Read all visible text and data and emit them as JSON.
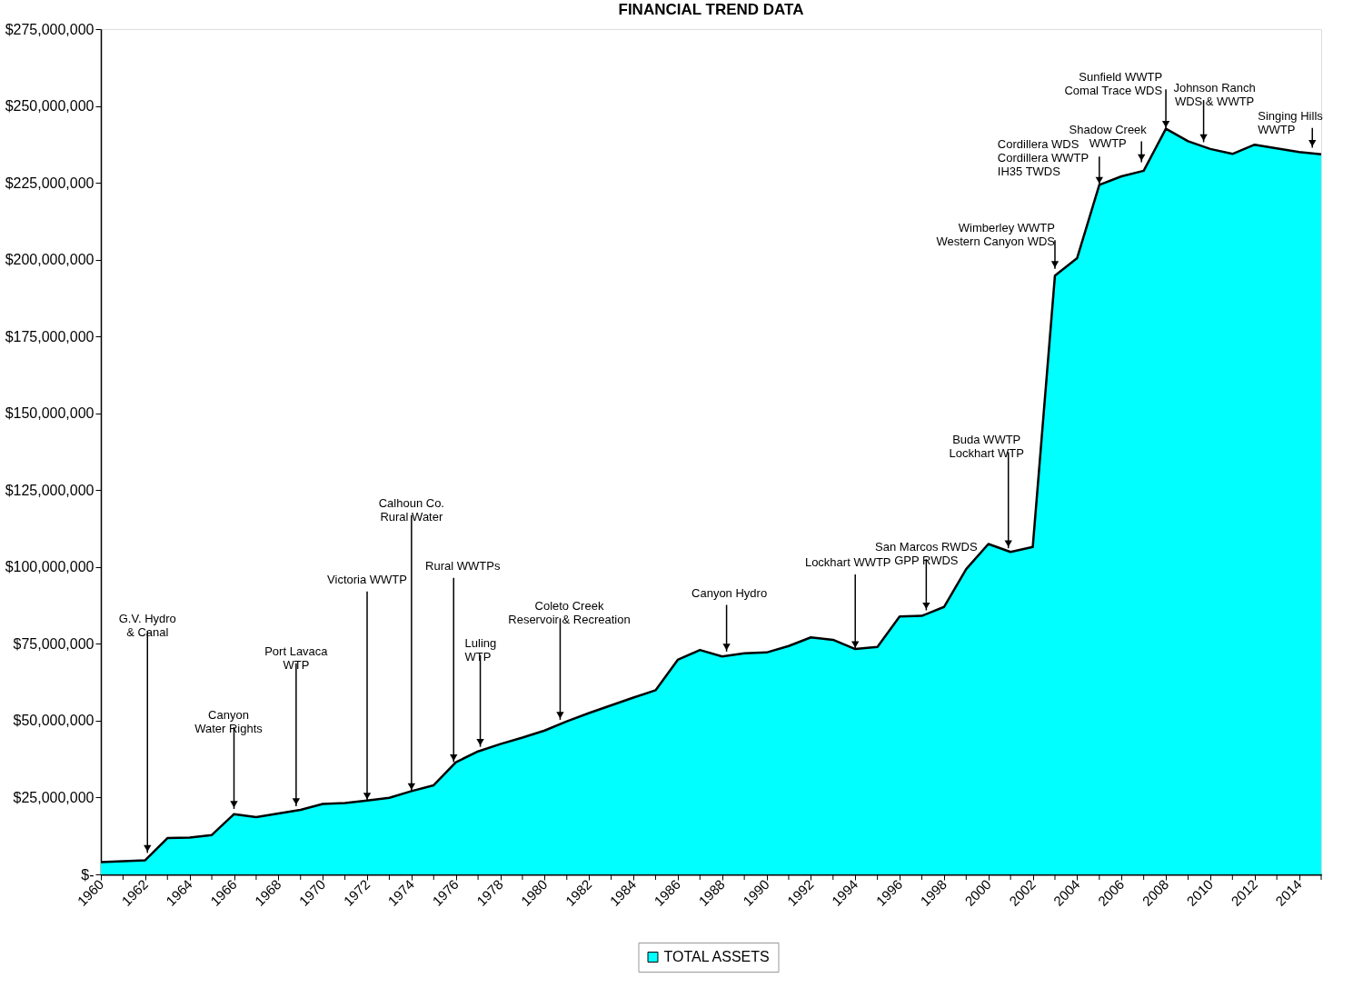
{
  "chart_data": {
    "type": "area",
    "title": "FINANCIAL TREND DATA",
    "x": [
      1960,
      1961,
      1962,
      1963,
      1964,
      1965,
      1966,
      1967,
      1968,
      1969,
      1970,
      1971,
      1972,
      1973,
      1974,
      1975,
      1976,
      1977,
      1978,
      1979,
      1980,
      1981,
      1982,
      1983,
      1984,
      1985,
      1986,
      1987,
      1988,
      1989,
      1990,
      1991,
      1992,
      1993,
      1994,
      1995,
      1996,
      1997,
      1998,
      1999,
      2000,
      2001,
      2002,
      2003,
      2004,
      2005,
      2006,
      2007,
      2008,
      2009,
      2010,
      2011,
      2012,
      2013,
      2014,
      2015
    ],
    "series": [
      {
        "name": "TOTAL ASSETS",
        "color": "#00ffff",
        "values": [
          4000000,
          4300000,
          4600000,
          11800000,
          12000000,
          12800000,
          19600000,
          18600000,
          19800000,
          21000000,
          22900000,
          23200000,
          24000000,
          24900000,
          27100000,
          29000000,
          36500000,
          40000000,
          42400000,
          44500000,
          46800000,
          49800000,
          52500000,
          55000000,
          57500000,
          59900000,
          69800000,
          73000000,
          70900000,
          71900000,
          72200000,
          74300000,
          77100000,
          76300000,
          73300000,
          74000000,
          83900000,
          84100000,
          87000000,
          99300000,
          107500000,
          104900000,
          106500000,
          194800000,
          200500000,
          224300000,
          227100000,
          228900000,
          242600000,
          238500000,
          236000000,
          234400000,
          237400000,
          236200000,
          235000000,
          234300000
        ]
      }
    ],
    "xlim": [
      1960,
      2015
    ],
    "xticks": [
      1960,
      {
        "value": 1961,
        "label": null
      },
      1962,
      {
        "value": 1963,
        "label": null
      },
      1964,
      {
        "value": 1965,
        "label": null
      },
      1966,
      {
        "value": 1967,
        "label": null
      },
      1968,
      {
        "value": 1969,
        "label": null
      },
      1970,
      {
        "value": 1971,
        "label": null
      },
      1972,
      {
        "value": 1973,
        "label": null
      },
      1974,
      {
        "value": 1975,
        "label": null
      },
      1976,
      {
        "value": 1977,
        "label": null
      },
      1978,
      {
        "value": 1979,
        "label": null
      },
      1980,
      {
        "value": 1981,
        "label": null
      },
      1982,
      {
        "value": 1983,
        "label": null
      },
      1984,
      {
        "value": 1985,
        "label": null
      },
      1986,
      {
        "value": 1987,
        "label": null
      },
      1988,
      {
        "value": 1989,
        "label": null
      },
      1990,
      {
        "value": 1991,
        "label": null
      },
      1992,
      {
        "value": 1993,
        "label": null
      },
      1994,
      {
        "value": 1995,
        "label": null
      },
      1996,
      {
        "value": 1997,
        "label": null
      },
      1998,
      {
        "value": 1999,
        "label": null
      },
      2000,
      {
        "value": 2001,
        "label": null
      },
      2002,
      {
        "value": 2003,
        "label": null
      },
      2004,
      {
        "value": 2005,
        "label": null
      },
      2006,
      {
        "value": 2007,
        "label": null
      },
      2008,
      {
        "value": 2009,
        "label": null
      },
      2010,
      {
        "value": 2011,
        "label": null
      },
      2012,
      {
        "value": 2013,
        "label": null
      },
      2014,
      {
        "value": 2015,
        "label": null
      }
    ],
    "ylim": [
      0,
      275000000
    ],
    "yticks": [
      {
        "value": 0,
        "label": "$-"
      },
      {
        "value": 25000000,
        "label": "$25,000,000"
      },
      {
        "value": 50000000,
        "label": "$50,000,000"
      },
      {
        "value": 75000000,
        "label": "$75,000,000"
      },
      {
        "value": 100000000,
        "label": "$100,000,000"
      },
      {
        "value": 125000000,
        "label": "$125,000,000"
      },
      {
        "value": 150000000,
        "label": "$150,000,000"
      },
      {
        "value": 175000000,
        "label": "$175,000,000"
      },
      {
        "value": 200000000,
        "label": "$200,000,000"
      },
      {
        "value": 225000000,
        "label": "$225,000,000"
      },
      {
        "value": 250000000,
        "label": "$250,000,000"
      },
      {
        "value": 275000000,
        "label": "$275,000,000"
      }
    ],
    "grid": false,
    "legend": "bottom",
    "marker": "none",
    "line_style": "solid",
    "annotations": [
      {
        "text": "G.V. Hydro\n& Canal",
        "x": 1962.1,
        "y": 7000000
      },
      {
        "text": "Canyon\nWater Rights",
        "x": 1966.0,
        "y": 21300000
      },
      {
        "text": "Port Lavaca\nWTP",
        "x": 1968.8,
        "y": 22200000
      },
      {
        "text": "Victoria WWTP",
        "x": 1972,
        "y": 24000000
      },
      {
        "text": "Calhoun Co.\nRural Water",
        "x": 1974,
        "y": 27100000
      },
      {
        "text": "Rural WWTPs",
        "x": 1975.9,
        "y": 36500000
      },
      {
        "text": "Luling\nWTP",
        "x": 1977.1,
        "y": 41500000
      },
      {
        "text": "Coleto Creek\nReservoir & Recreation",
        "x": 1980.7,
        "y": 50300000
      },
      {
        "text": "Canyon Hydro",
        "x": 1988.2,
        "y": 72500000
      },
      {
        "text": "Lockhart WWTP",
        "x": 1994,
        "y": 73300000
      },
      {
        "text": "San Marcos RWDS\nGPP RWDS",
        "x": 1997.2,
        "y": 85900000
      },
      {
        "text": "Buda WWTP\nLockhart WTP",
        "x": 2000.9,
        "y": 106100000
      },
      {
        "text": "Wimberley WWTP\nWestern Canyon WDS",
        "x": 2003.0,
        "y": 197000000
      },
      {
        "text": "Cordillera WDS\nCordillera WWTP\nIH35 TWDS",
        "x": 2005,
        "y": 224300000
      },
      {
        "text": "Shadow Creek\nWWTP",
        "x": 2006.9,
        "y": 231700000
      },
      {
        "text": "Sunfield WWTP\nComal Trace WDS",
        "x": 2008,
        "y": 242600000
      },
      {
        "text": "Johnson Ranch\nWDS & WWTP",
        "x": 2009.7,
        "y": 238200000
      },
      {
        "text": "Singing Hills\nWWTP",
        "x": 2014.6,
        "y": 236400000
      }
    ]
  }
}
